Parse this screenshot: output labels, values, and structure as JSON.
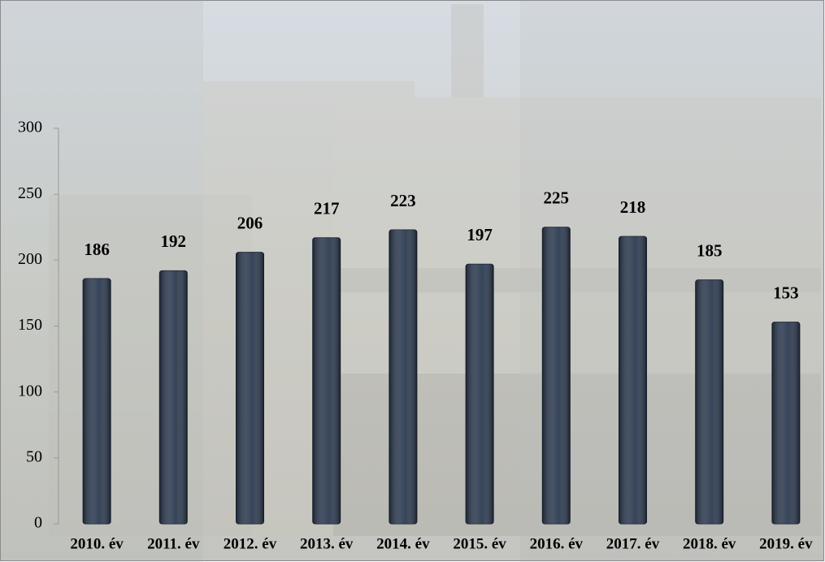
{
  "chart_data": {
    "type": "bar",
    "categories": [
      "2010. év",
      "2011. év",
      "2012. év",
      "2013. év",
      "2014. év",
      "2015. év",
      "2016. év",
      "2017. év",
      "2018. év",
      "2019. év"
    ],
    "values": [
      186,
      192,
      206,
      217,
      223,
      197,
      225,
      218,
      185,
      153
    ],
    "color": "#2c3a50",
    "ylim": [
      0,
      300
    ],
    "yticks": [
      0,
      50,
      100,
      150,
      200,
      250,
      300
    ],
    "grid": false
  }
}
